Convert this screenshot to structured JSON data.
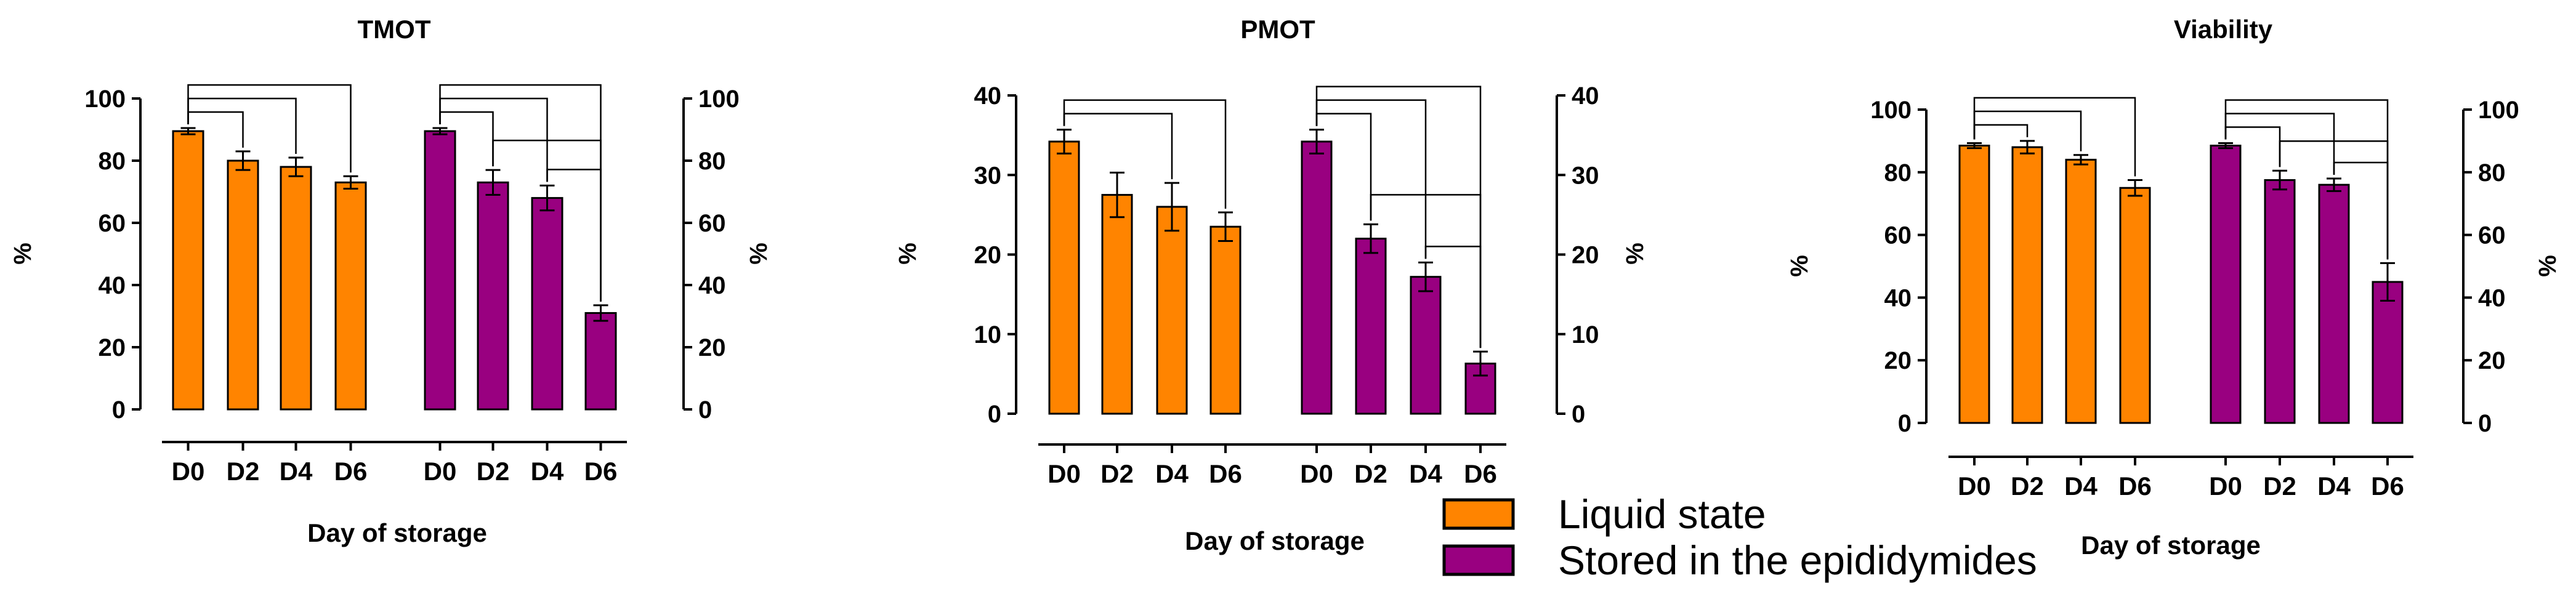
{
  "colors": {
    "liquid": "#ff8400",
    "epididymides": "#990080",
    "stroke": "#000000"
  },
  "legend": {
    "liquid": "Liquid state",
    "epididymides": "Stored in the epididymides"
  },
  "chart_data": [
    {
      "type": "bar",
      "title": "TMOT",
      "xlabel": "Day of storage",
      "ylabel": "%",
      "ylabel_right": "%",
      "ylim": [
        0,
        100
      ],
      "yticks": [
        "0",
        "20",
        "40",
        "60",
        "80",
        "100"
      ],
      "categories": [
        "D0",
        "D2",
        "D4",
        "D6"
      ],
      "series": [
        {
          "name": "Liquid state",
          "values": [
            89.5,
            80,
            78,
            73
          ],
          "errors": [
            1,
            3,
            3,
            2
          ]
        },
        {
          "name": "Stored in the epididymides",
          "values": [
            89.5,
            73,
            68,
            31
          ],
          "errors": [
            1,
            4,
            4,
            2.5
          ]
        }
      ],
      "comparisons": [
        {
          "series": 0,
          "from": 0,
          "to": 1
        },
        {
          "series": 0,
          "from": 0,
          "to": 2
        },
        {
          "series": 0,
          "from": 0,
          "to": 3
        },
        {
          "series": 1,
          "from": 0,
          "to": 1
        },
        {
          "series": 1,
          "from": 0,
          "to": 2
        },
        {
          "series": 1,
          "from": 0,
          "to": 3
        },
        {
          "series": 1,
          "from": 1,
          "to": 3
        },
        {
          "series": 1,
          "from": 2,
          "to": 3
        }
      ]
    },
    {
      "type": "bar",
      "title": "PMOT",
      "xlabel": "Day of storage",
      "ylabel": "%",
      "ylabel_right": "%",
      "ylim": [
        0,
        40
      ],
      "yticks": [
        "0",
        "10",
        "20",
        "30",
        "40"
      ],
      "categories": [
        "D0",
        "D2",
        "D4",
        "D6"
      ],
      "series": [
        {
          "name": "Liquid state",
          "values": [
            34.2,
            27.5,
            26,
            23.5
          ],
          "errors": [
            1.5,
            2.8,
            3,
            1.8
          ]
        },
        {
          "name": "Stored in the epididymides",
          "values": [
            34.2,
            22,
            17.2,
            6.3
          ],
          "errors": [
            1.5,
            1.8,
            1.8,
            1.5
          ]
        }
      ],
      "comparisons": [
        {
          "series": 0,
          "from": 0,
          "to": 2
        },
        {
          "series": 0,
          "from": 0,
          "to": 3
        },
        {
          "series": 1,
          "from": 0,
          "to": 1
        },
        {
          "series": 1,
          "from": 0,
          "to": 2
        },
        {
          "series": 1,
          "from": 0,
          "to": 3
        },
        {
          "series": 1,
          "from": 1,
          "to": 3
        },
        {
          "series": 1,
          "from": 2,
          "to": 3
        }
      ]
    },
    {
      "type": "bar",
      "title": "Viability",
      "xlabel": "Day of storage",
      "ylabel": "%",
      "ylabel_right": "%",
      "ylim": [
        0,
        100
      ],
      "yticks": [
        "0",
        "20",
        "40",
        "60",
        "80",
        "100"
      ],
      "categories": [
        "D0",
        "D2",
        "D4",
        "D6"
      ],
      "series": [
        {
          "name": "Liquid state",
          "values": [
            88.5,
            88,
            84,
            75
          ],
          "errors": [
            0.8,
            2,
            1.5,
            2.5
          ]
        },
        {
          "name": "Stored in the epididymides",
          "values": [
            88.5,
            77.5,
            76,
            45
          ],
          "errors": [
            0.8,
            3,
            2,
            6
          ]
        }
      ],
      "comparisons": [
        {
          "series": 0,
          "from": 0,
          "to": 1
        },
        {
          "series": 0,
          "from": 0,
          "to": 2
        },
        {
          "series": 0,
          "from": 0,
          "to": 3
        },
        {
          "series": 1,
          "from": 0,
          "to": 1
        },
        {
          "series": 1,
          "from": 0,
          "to": 2
        },
        {
          "series": 1,
          "from": 0,
          "to": 3
        },
        {
          "series": 1,
          "from": 1,
          "to": 3
        },
        {
          "series": 1,
          "from": 2,
          "to": 3
        }
      ]
    }
  ]
}
